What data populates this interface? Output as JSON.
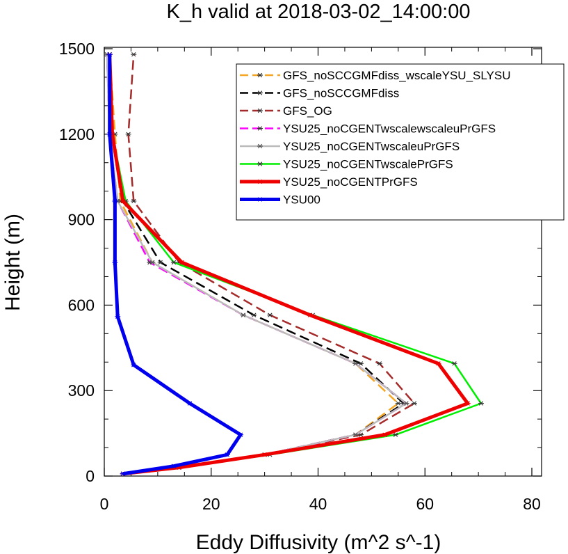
{
  "chart_data": {
    "type": "line",
    "title": "K_h valid at 2018-03-02_14:00:00",
    "xlabel": "Eddy Diffusivity (m^2 s^-1)",
    "ylabel": "Height (m)",
    "xlim": [
      0,
      80
    ],
    "ylim": [
      0,
      1500
    ],
    "xticks": [
      0,
      20,
      40,
      60,
      80
    ],
    "yticks": [
      0,
      300,
      600,
      900,
      1200,
      1500
    ],
    "grid": false,
    "legend_position": "top-right",
    "series": [
      {
        "name": "GFS_noSCCGMFdiss_wscaleYSU_SLYSU",
        "color": "#f5a623",
        "dash": "dash",
        "width": 2.5,
        "points": [
          [
            3.5,
            8
          ],
          [
            14,
            30
          ],
          [
            30,
            75
          ],
          [
            47,
            145
          ],
          [
            55,
            255
          ],
          [
            47,
            395
          ],
          [
            26,
            565
          ],
          [
            9,
            750
          ],
          [
            3,
            965
          ],
          [
            2,
            1200
          ],
          [
            1,
            1480
          ]
        ]
      },
      {
        "name": "GFS_noSCCGMFdiss",
        "color": "#000000",
        "dash": "dash",
        "width": 2.5,
        "points": [
          [
            3.5,
            8
          ],
          [
            14,
            30
          ],
          [
            30,
            75
          ],
          [
            47,
            145
          ],
          [
            56,
            255
          ],
          [
            48,
            395
          ],
          [
            28,
            565
          ],
          [
            10.5,
            750
          ],
          [
            3.5,
            965
          ],
          [
            1.5,
            1200
          ],
          [
            1,
            1480
          ]
        ]
      },
      {
        "name": "GFS_OG",
        "color": "#a52a2a",
        "dash": "dash",
        "width": 2.5,
        "points": [
          [
            3.5,
            8
          ],
          [
            14,
            30
          ],
          [
            30,
            75
          ],
          [
            48,
            145
          ],
          [
            58,
            255
          ],
          [
            51.5,
            395
          ],
          [
            31,
            565
          ],
          [
            14,
            750
          ],
          [
            5.5,
            965
          ],
          [
            4.5,
            1200
          ],
          [
            5.5,
            1480
          ]
        ]
      },
      {
        "name": "YSU25_noCGENTwscalewscaleuPrGFS",
        "color": "#ff00ff",
        "dash": "dash",
        "width": 2.5,
        "points": [
          [
            3.5,
            8
          ],
          [
            14,
            30
          ],
          [
            30,
            75
          ],
          [
            47,
            145
          ],
          [
            56.5,
            255
          ],
          [
            47,
            395
          ],
          [
            26,
            565
          ],
          [
            8.5,
            750
          ],
          [
            2.5,
            965
          ],
          [
            1,
            1200
          ],
          [
            0.5,
            1480
          ]
        ]
      },
      {
        "name": "YSU25_noCGENTwscaleuPrGFS",
        "color": "#bbbbbb",
        "dash": "solid",
        "width": 2.5,
        "points": [
          [
            3.5,
            8
          ],
          [
            14,
            30
          ],
          [
            30,
            75
          ],
          [
            47,
            145
          ],
          [
            56.5,
            255
          ],
          [
            47,
            395
          ],
          [
            26,
            565
          ],
          [
            9,
            750
          ],
          [
            2.5,
            965
          ],
          [
            1,
            1200
          ],
          [
            0.5,
            1480
          ]
        ]
      },
      {
        "name": "YSU25_noCGENTwscalePrGFS",
        "color": "#00ee00",
        "dash": "solid",
        "width": 2.5,
        "points": [
          [
            3.5,
            8
          ],
          [
            14,
            30
          ],
          [
            31,
            75
          ],
          [
            54.5,
            145
          ],
          [
            70.5,
            255
          ],
          [
            65.5,
            395
          ],
          [
            39,
            565
          ],
          [
            13,
            750
          ],
          [
            4,
            965
          ],
          [
            1.5,
            1200
          ],
          [
            1,
            1480
          ]
        ]
      },
      {
        "name": "YSU25_noCGENTPrGFS",
        "color": "#ee0000",
        "dash": "solid",
        "width": 5,
        "points": [
          [
            3.5,
            8
          ],
          [
            14,
            30
          ],
          [
            30,
            75
          ],
          [
            52.5,
            145
          ],
          [
            68,
            255
          ],
          [
            62.5,
            395
          ],
          [
            38.5,
            565
          ],
          [
            14.5,
            750
          ],
          [
            3.5,
            965
          ],
          [
            1.5,
            1200
          ],
          [
            1,
            1480
          ]
        ]
      },
      {
        "name": "YSU00",
        "color": "#0000ee",
        "dash": "solid",
        "width": 5,
        "points": [
          [
            3.5,
            8
          ],
          [
            13,
            35
          ],
          [
            23,
            75
          ],
          [
            25.5,
            145
          ],
          [
            16,
            255
          ],
          [
            5.5,
            390
          ],
          [
            2.5,
            560
          ],
          [
            2,
            750
          ],
          [
            2,
            965
          ],
          [
            1,
            1200
          ],
          [
            1,
            1480
          ]
        ]
      }
    ]
  }
}
